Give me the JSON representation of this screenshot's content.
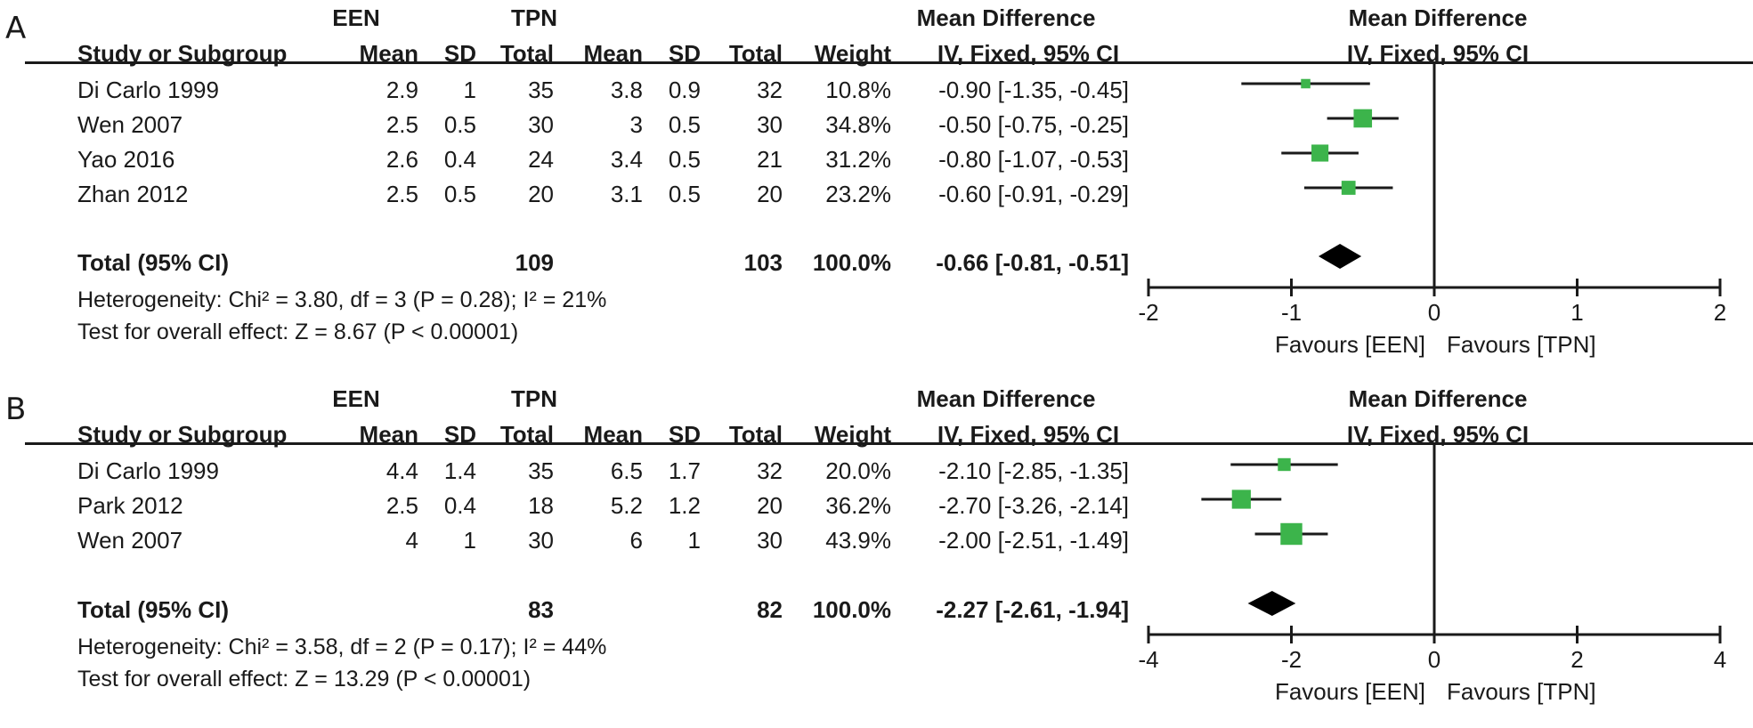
{
  "panels": [
    {
      "label": "A",
      "headers": {
        "group1": "EEN",
        "group2": "TPN",
        "effect": "Mean Difference",
        "study": "Study or Subgroup",
        "mean": "Mean",
        "sd": "SD",
        "total": "Total",
        "weight": "Weight",
        "method": "IV, Fixed, 95% CI",
        "plot_effect": "Mean Difference",
        "plot_method": "IV, Fixed, 95% CI"
      },
      "rows": [
        {
          "study": "Di Carlo 1999",
          "m1": "2.9",
          "sd1": "1",
          "n1": "35",
          "m2": "3.8",
          "sd2": "0.9",
          "n2": "32",
          "weight": "10.8%",
          "ci_text": "-0.90 [-1.35, -0.45]"
        },
        {
          "study": "Wen 2007",
          "m1": "2.5",
          "sd1": "0.5",
          "n1": "30",
          "m2": "3",
          "sd2": "0.5",
          "n2": "30",
          "weight": "34.8%",
          "ci_text": "-0.50 [-0.75, -0.25]"
        },
        {
          "study": "Yao 2016",
          "m1": "2.6",
          "sd1": "0.4",
          "n1": "24",
          "m2": "3.4",
          "sd2": "0.5",
          "n2": "21",
          "weight": "31.2%",
          "ci_text": "-0.80 [-1.07, -0.53]"
        },
        {
          "study": "Zhan 2012",
          "m1": "2.5",
          "sd1": "0.5",
          "n1": "20",
          "m2": "3.1",
          "sd2": "0.5",
          "n2": "20",
          "weight": "23.2%",
          "ci_text": "-0.60 [-0.91, -0.29]"
        }
      ],
      "total": {
        "label": "Total (95% CI)",
        "n1": "109",
        "n2": "103",
        "weight": "100.0%",
        "ci_text": "-0.66 [-0.81, -0.51]"
      },
      "heterogeneity": "Heterogeneity: Chi² = 3.80, df = 3 (P = 0.28); I² = 21%",
      "overall": "Test for overall effect: Z = 8.67 (P < 0.00001)",
      "axis_ticks": [
        "-2",
        "-1",
        "0",
        "1",
        "2"
      ],
      "favours_left": "Favours [EEN]",
      "favours_right": "Favours [TPN]"
    },
    {
      "label": "B",
      "headers": {
        "group1": "EEN",
        "group2": "TPN",
        "effect": "Mean Difference",
        "study": "Study or Subgroup",
        "mean": "Mean",
        "sd": "SD",
        "total": "Total",
        "weight": "Weight",
        "method": "IV, Fixed, 95% CI",
        "plot_effect": "Mean Difference",
        "plot_method": "IV, Fixed, 95% CI"
      },
      "rows": [
        {
          "study": "Di Carlo 1999",
          "m1": "4.4",
          "sd1": "1.4",
          "n1": "35",
          "m2": "6.5",
          "sd2": "1.7",
          "n2": "32",
          "weight": "20.0%",
          "ci_text": "-2.10 [-2.85, -1.35]"
        },
        {
          "study": "Park 2012",
          "m1": "2.5",
          "sd1": "0.4",
          "n1": "18",
          "m2": "5.2",
          "sd2": "1.2",
          "n2": "20",
          "weight": "36.2%",
          "ci_text": "-2.70 [-3.26, -2.14]"
        },
        {
          "study": "Wen 2007",
          "m1": "4",
          "sd1": "1",
          "n1": "30",
          "m2": "6",
          "sd2": "1",
          "n2": "30",
          "weight": "43.9%",
          "ci_text": "-2.00 [-2.51, -1.49]"
        }
      ],
      "total": {
        "label": "Total (95% CI)",
        "n1": "83",
        "n2": "82",
        "weight": "100.0%",
        "ci_text": "-2.27 [-2.61, -1.94]"
      },
      "heterogeneity": "Heterogeneity: Chi² = 3.58, df = 2 (P = 0.17); I² = 44%",
      "overall": "Test for overall effect: Z = 13.29 (P < 0.00001)",
      "axis_ticks": [
        "-4",
        "-2",
        "0",
        "2",
        "4"
      ],
      "favours_left": "Favours [EEN]",
      "favours_right": "Favours [TPN]"
    }
  ],
  "chart_data": [
    {
      "type": "forest",
      "xlim": [
        -2,
        2
      ],
      "ticks": [
        -2,
        -1,
        0,
        1,
        2
      ],
      "studies": [
        {
          "name": "Di Carlo 1999",
          "estimate": -0.9,
          "lower": -1.35,
          "upper": -0.45,
          "weight": 10.8
        },
        {
          "name": "Wen 2007",
          "estimate": -0.5,
          "lower": -0.75,
          "upper": -0.25,
          "weight": 34.8
        },
        {
          "name": "Yao 2016",
          "estimate": -0.8,
          "lower": -1.07,
          "upper": -0.53,
          "weight": 31.2
        },
        {
          "name": "Zhan 2012",
          "estimate": -0.6,
          "lower": -0.91,
          "upper": -0.29,
          "weight": 23.2
        }
      ],
      "pooled": {
        "estimate": -0.66,
        "lower": -0.81,
        "upper": -0.51
      }
    },
    {
      "type": "forest",
      "xlim": [
        -4,
        4
      ],
      "ticks": [
        -4,
        -2,
        0,
        2,
        4
      ],
      "studies": [
        {
          "name": "Di Carlo 1999",
          "estimate": -2.1,
          "lower": -2.85,
          "upper": -1.35,
          "weight": 20.0
        },
        {
          "name": "Park 2012",
          "estimate": -2.7,
          "lower": -3.26,
          "upper": -2.14,
          "weight": 36.2
        },
        {
          "name": "Wen 2007",
          "estimate": -2.0,
          "lower": -2.51,
          "upper": -1.49,
          "weight": 43.9
        }
      ],
      "pooled": {
        "estimate": -2.27,
        "lower": -2.61,
        "upper": -1.94
      }
    }
  ],
  "colors": {
    "square": "#3cb44b",
    "diamond": "#000000",
    "line": "#1a1a1a"
  }
}
